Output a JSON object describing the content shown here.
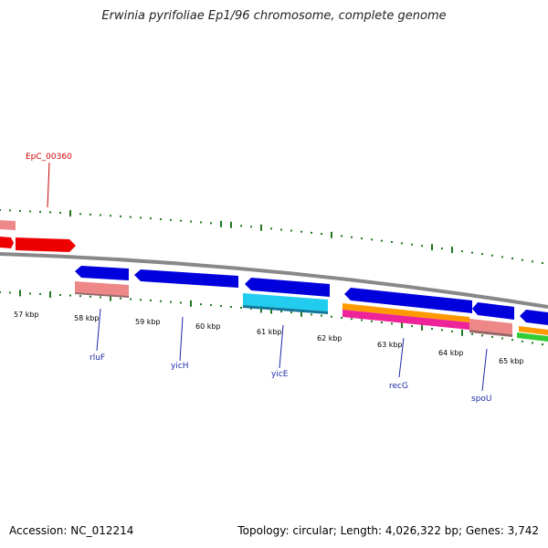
{
  "header": {
    "title": "Erwinia pyrifoliae Ep1/96 chromosome, complete genome"
  },
  "footer": {
    "accession": "Accession: NC_012214",
    "stats": "Topology: circular; Length: 4,026,322 bp; Genes: 3,742"
  },
  "colors": {
    "backbone": "#888888",
    "forward_gene": "#0000dd",
    "reverse_gene": "#ee0000",
    "pink": "#ee8888",
    "cyan": "#22ccee",
    "orange": "#ff9900",
    "magenta": "#ee2299",
    "green": "#33cc33",
    "gc_tick": "#227722",
    "label_blue": "#1a2aa8",
    "label_red": "#cc0000"
  },
  "scale": {
    "labels": [
      "57 kbp",
      "58 kbp",
      "59 kbp",
      "60 kbp",
      "61 kbp",
      "62 kbp",
      "63 kbp",
      "64 kbp",
      "65 kbp"
    ]
  },
  "gene_labels": [
    "EpC_00360",
    "rluF",
    "yicH",
    "yicE",
    "recG",
    "spoU"
  ]
}
